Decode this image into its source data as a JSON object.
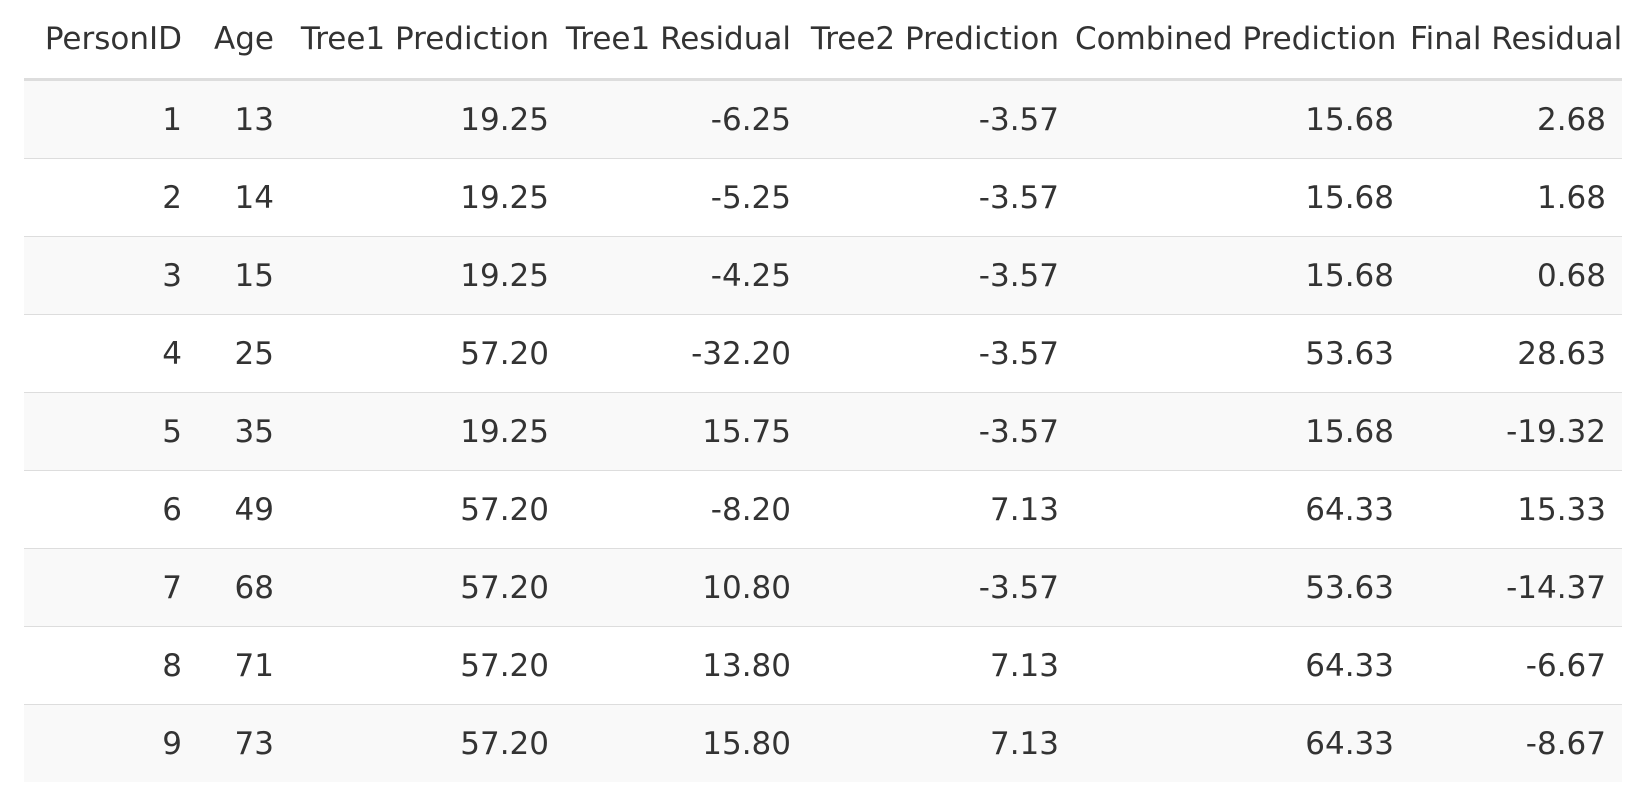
{
  "table": {
    "headers": [
      "PersonID",
      "Age",
      "Tree1 Prediction",
      "Tree1 Residual",
      "Tree2 Prediction",
      "Combined Prediction",
      "Final Residual"
    ],
    "rows": [
      [
        "1",
        "13",
        "19.25",
        "-6.25",
        "-3.57",
        "15.68",
        "2.68"
      ],
      [
        "2",
        "14",
        "19.25",
        "-5.25",
        "-3.57",
        "15.68",
        "1.68"
      ],
      [
        "3",
        "15",
        "19.25",
        "-4.25",
        "-3.57",
        "15.68",
        "0.68"
      ],
      [
        "4",
        "25",
        "57.20",
        "-32.20",
        "-3.57",
        "53.63",
        "28.63"
      ],
      [
        "5",
        "35",
        "19.25",
        "15.75",
        "-3.57",
        "15.68",
        "-19.32"
      ],
      [
        "6",
        "49",
        "57.20",
        "-8.20",
        "7.13",
        "64.33",
        "15.33"
      ],
      [
        "7",
        "68",
        "57.20",
        "10.80",
        "-3.57",
        "53.63",
        "-14.37"
      ],
      [
        "8",
        "71",
        "57.20",
        "13.80",
        "7.13",
        "64.33",
        "-6.67"
      ],
      [
        "9",
        "73",
        "57.20",
        "15.80",
        "7.13",
        "64.33",
        "-8.67"
      ]
    ]
  }
}
